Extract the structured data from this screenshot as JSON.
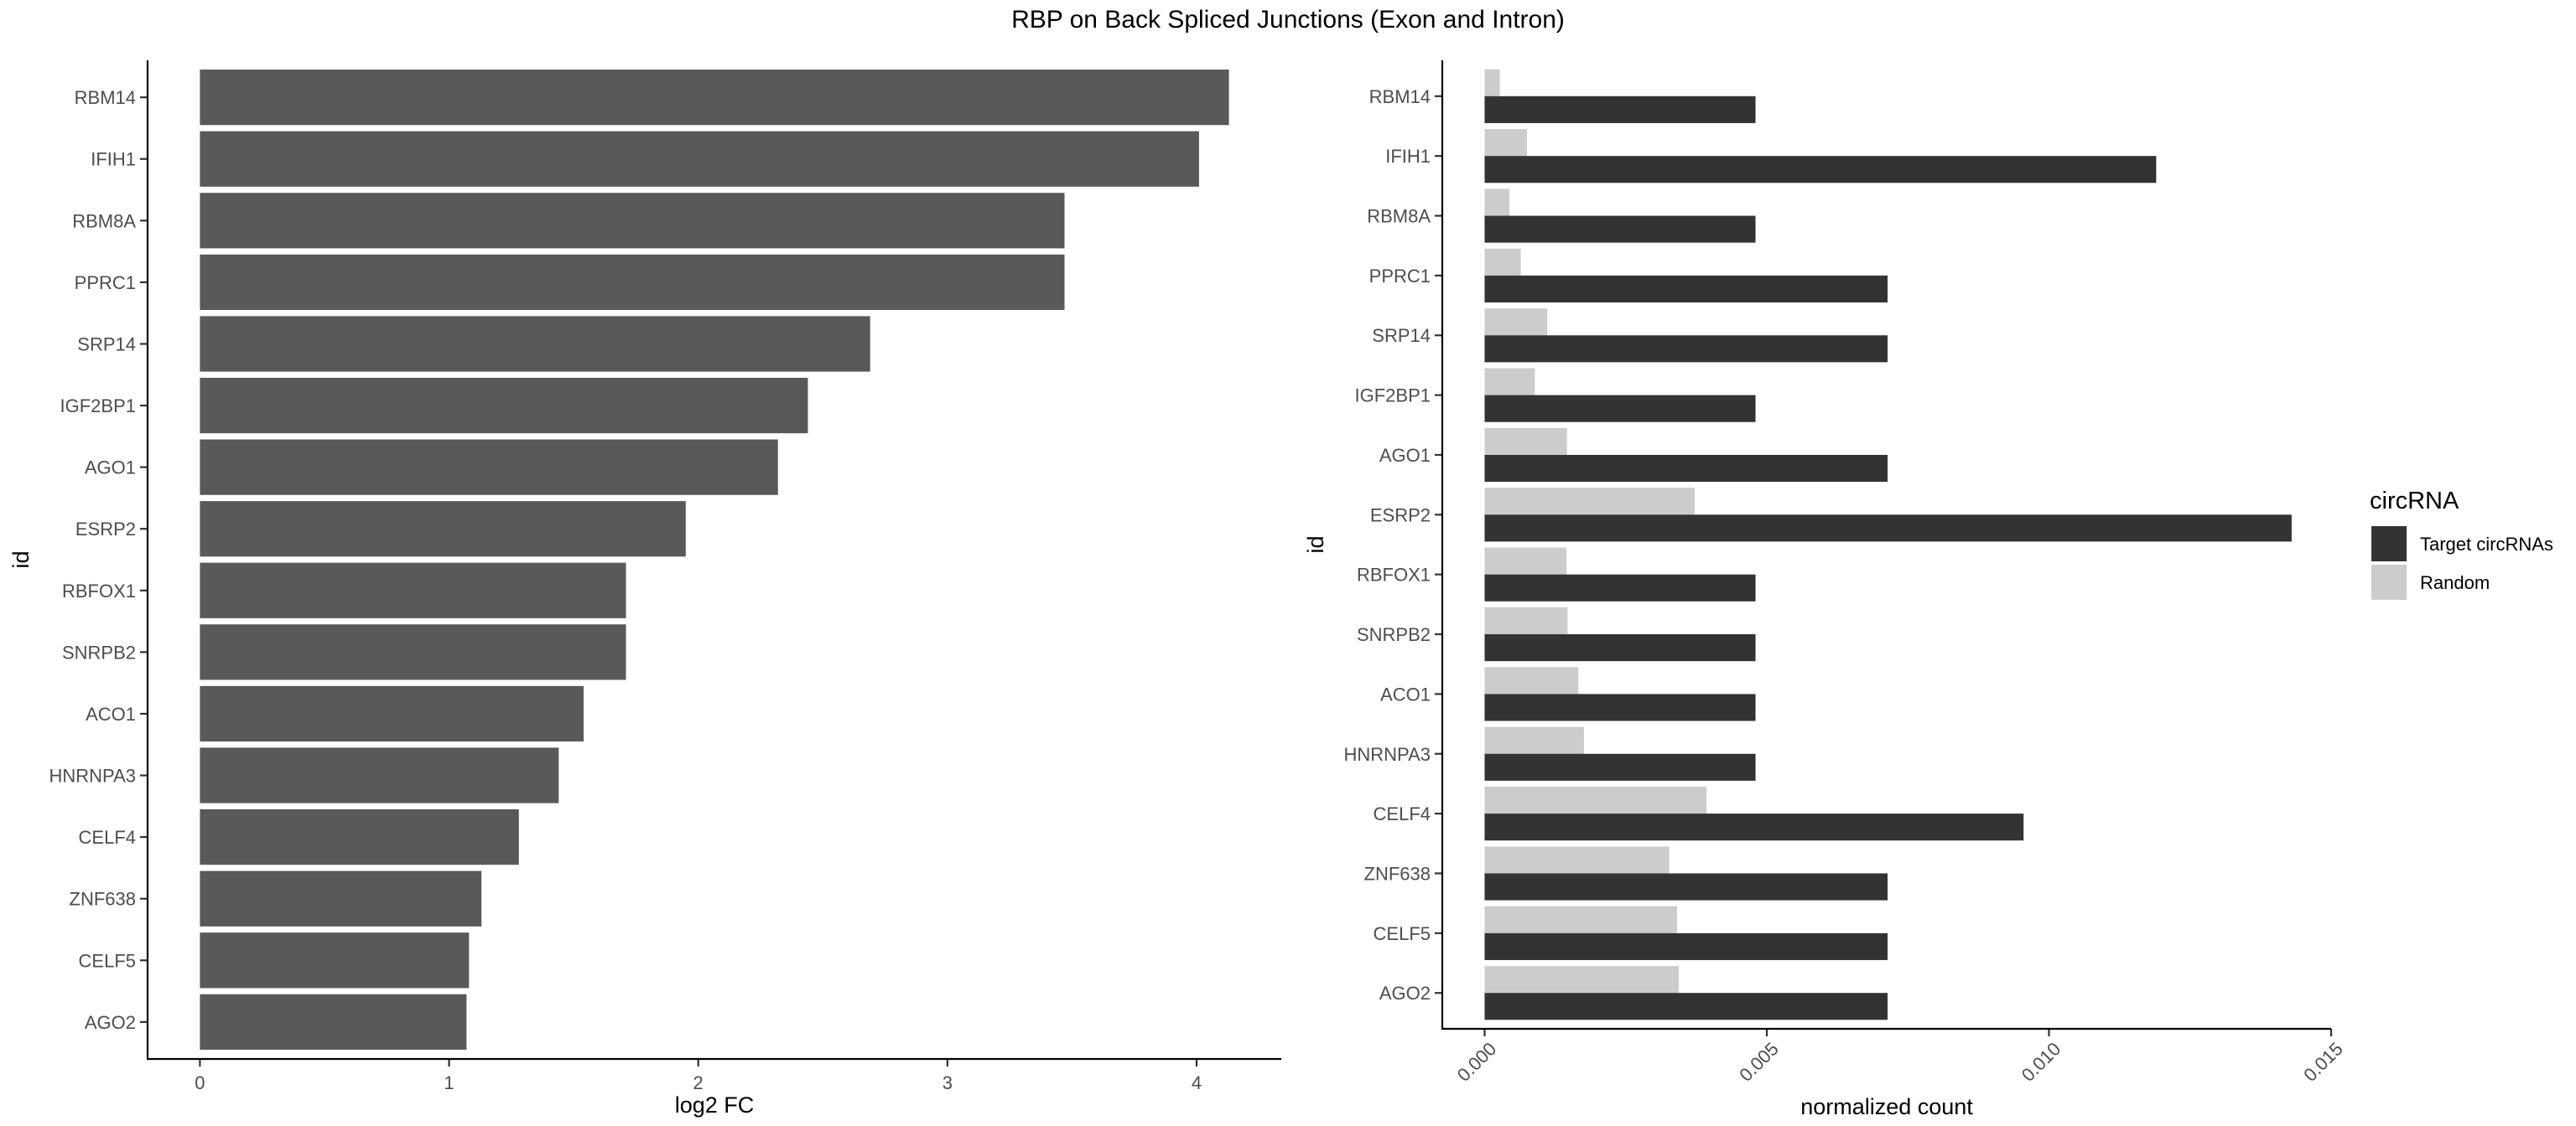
{
  "title": "RBP on Back Spliced Junctions (Exon and Intron)",
  "colors": {
    "log2fc_bar": "#595959",
    "target": "#333333",
    "random": "#cccccc"
  },
  "chart_data": [
    {
      "type": "bar",
      "orientation": "horizontal",
      "categories": [
        "RBM14",
        "IFIH1",
        "RBM8A",
        "PPRC1",
        "SRP14",
        "IGF2BP1",
        "AGO1",
        "ESRP2",
        "RBFOX1",
        "SNRPB2",
        "ACO1",
        "HNRNPA3",
        "CELF4",
        "ZNF638",
        "CELF5",
        "AGO2"
      ],
      "values": [
        4.13,
        4.01,
        3.47,
        3.47,
        2.69,
        2.44,
        2.32,
        1.95,
        1.71,
        1.71,
        1.54,
        1.44,
        1.28,
        1.13,
        1.08,
        1.07
      ],
      "xlabel": "log2 FC",
      "ylabel": "id",
      "xlim": [
        -0.21,
        4.34
      ],
      "xticks": [
        0,
        1,
        2,
        3,
        4
      ],
      "xtick_labels": [
        "0",
        "1",
        "2",
        "3",
        "4"
      ],
      "grid": false
    },
    {
      "type": "bar",
      "orientation": "horizontal",
      "categories": [
        "RBM14",
        "IFIH1",
        "RBM8A",
        "PPRC1",
        "SRP14",
        "IGF2BP1",
        "AGO1",
        "ESRP2",
        "RBFOX1",
        "SNRPB2",
        "ACO1",
        "HNRNPA3",
        "CELF4",
        "ZNF638",
        "CELF5",
        "AGO2"
      ],
      "series": [
        {
          "name": "Target circRNAs",
          "values": [
            0.0048,
            0.0119,
            0.0048,
            0.00714,
            0.00714,
            0.0048,
            0.00714,
            0.0143,
            0.0048,
            0.0048,
            0.0048,
            0.0048,
            0.00955,
            0.00714,
            0.00714,
            0.00714
          ]
        },
        {
          "name": "Random",
          "values": [
            0.00027,
            0.00075,
            0.00044,
            0.00064,
            0.00111,
            0.00089,
            0.00146,
            0.00372,
            0.00145,
            0.00147,
            0.00166,
            0.00176,
            0.00393,
            0.00327,
            0.00341,
            0.00344
          ]
        }
      ],
      "xlabel": "normalized count",
      "ylabel": "id",
      "xlim": [
        -0.00075,
        0.015
      ],
      "xticks": [
        0.0,
        0.005,
        0.01,
        0.015
      ],
      "xtick_labels": [
        "0.000",
        "0.005",
        "0.010",
        "0.015"
      ],
      "legend_title": "circRNA",
      "legend_position": "right",
      "grid": false
    }
  ]
}
